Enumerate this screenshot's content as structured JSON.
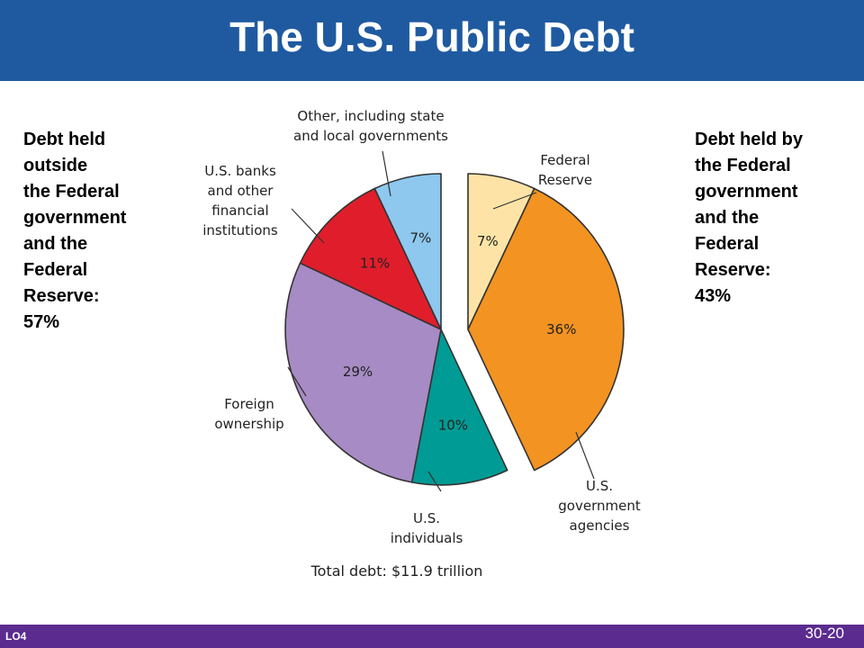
{
  "header": {
    "title": "The U.S. Public Debt"
  },
  "notes": {
    "left": [
      "Debt held",
      "outside",
      "the Federal",
      "government",
      "and the",
      "Federal",
      "Reserve:",
      "57%"
    ],
    "right": [
      "Debt held by",
      "the Federal",
      "government",
      "and the",
      "Federal",
      "Reserve:",
      "43%"
    ]
  },
  "footer": {
    "lo": "LO4",
    "page": "30-20"
  },
  "chart_data": {
    "type": "pie",
    "title": "",
    "caption": "Total debt: $11.9 trillion",
    "slices": [
      {
        "label": [
          "Federal",
          "Reserve"
        ],
        "value": 7,
        "pct_label": "7%",
        "color": "#fde4a6",
        "exploded": true
      },
      {
        "label": [
          "U.S.",
          "government",
          "agencies"
        ],
        "value": 36,
        "pct_label": "36%",
        "color": "#f39322",
        "exploded": true
      },
      {
        "label": [
          "U.S.",
          "individuals"
        ],
        "value": 10,
        "pct_label": "10%",
        "color": "#009b94",
        "exploded": false
      },
      {
        "label": [
          "Foreign",
          "ownership"
        ],
        "value": 29,
        "pct_label": "29%",
        "color": "#a78bc4",
        "exploded": false
      },
      {
        "label": [
          "U.S. banks",
          "and other",
          "financial",
          "institutions"
        ],
        "value": 11,
        "pct_label": "11%",
        "color": "#e01e2b",
        "exploded": false
      },
      {
        "label": [
          "Other, including state",
          "and local governments"
        ],
        "value": 7,
        "pct_label": "7%",
        "color": "#8ec8ee",
        "exploded": false
      }
    ]
  }
}
